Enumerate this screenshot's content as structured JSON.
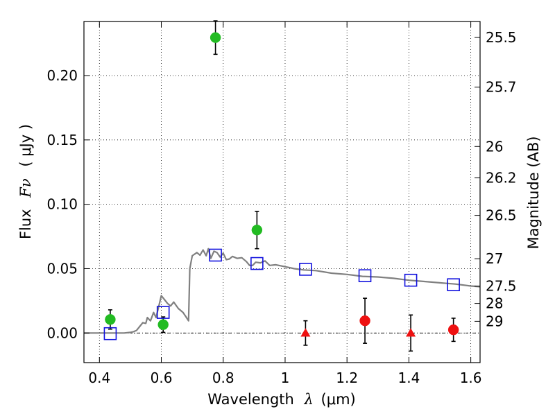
{
  "chart_data": {
    "type": "scatter",
    "xlabel_text": "Wavelength",
    "xlabel_symbol": "λ",
    "xlabel_unit": "(μm)",
    "ylabel_text": "Flux",
    "ylabel_symbol": "Fν",
    "ylabel_unit": "( μJy )",
    "y2label": "Magnitude (AB)",
    "xlim": [
      0.35,
      1.63
    ],
    "ylim": [
      -0.023,
      0.242
    ],
    "xticks": [
      0.4,
      0.6,
      0.8,
      1.0,
      1.2,
      1.4,
      1.6
    ],
    "xtick_labels": [
      "0.4",
      "0.6",
      "0.8",
      "1",
      "1.2",
      "1.4",
      "1.6"
    ],
    "yticks": [
      0.0,
      0.05,
      0.1,
      0.15,
      0.2
    ],
    "ytick_labels": [
      "0.00",
      "0.05",
      "0.10",
      "0.15",
      "0.20"
    ],
    "y2ticks": [
      {
        "label": "25.5",
        "flux": 0.2296
      },
      {
        "label": "25.7",
        "flux": 0.191
      },
      {
        "label": "26",
        "flux": 0.1449
      },
      {
        "label": "26.2",
        "flux": 0.1205
      },
      {
        "label": "26.5",
        "flux": 0.0914
      },
      {
        "label": "27",
        "flux": 0.0577
      },
      {
        "label": "27.5",
        "flux": 0.0364
      },
      {
        "label": "28",
        "flux": 0.023
      },
      {
        "label": "29",
        "flux": 0.0091
      }
    ],
    "grid": true,
    "series": [
      {
        "marker": "circle",
        "color": "#22bb22",
        "points": [
          {
            "x": 0.435,
            "y": 0.0105,
            "err": 0.0075
          },
          {
            "x": 0.606,
            "y": 0.0065,
            "err": 0.006
          },
          {
            "x": 0.775,
            "y": 0.2295,
            "err": 0.013
          },
          {
            "x": 0.909,
            "y": 0.08,
            "err": 0.0145
          }
        ]
      },
      {
        "marker": "circle",
        "color": "#ee1111",
        "points": [
          {
            "x": 1.258,
            "y": 0.0095,
            "err": 0.0175
          },
          {
            "x": 1.544,
            "y": 0.0025,
            "err": 0.009
          }
        ]
      },
      {
        "marker": "triangle",
        "color": "#ee1111",
        "points": [
          {
            "x": 1.066,
            "y": 0.0,
            "err": 0.0095
          },
          {
            "x": 1.406,
            "y": 0.0,
            "err": 0.014
          }
        ]
      },
      {
        "marker": "square",
        "color": "#1111dd",
        "points": [
          {
            "x": 0.435,
            "y": -0.0005
          },
          {
            "x": 0.606,
            "y": 0.016
          },
          {
            "x": 0.775,
            "y": 0.0605
          },
          {
            "x": 0.909,
            "y": 0.054
          },
          {
            "x": 1.066,
            "y": 0.0495
          },
          {
            "x": 1.258,
            "y": 0.0445
          },
          {
            "x": 1.406,
            "y": 0.041
          },
          {
            "x": 1.544,
            "y": 0.0375
          }
        ]
      }
    ],
    "model_curve": {
      "color": "#808080",
      "points": [
        [
          0.35,
          0.0
        ],
        [
          0.48,
          0.0
        ],
        [
          0.5,
          0.0005
        ],
        [
          0.51,
          0.001
        ],
        [
          0.52,
          0.002
        ],
        [
          0.53,
          0.005
        ],
        [
          0.54,
          0.008
        ],
        [
          0.55,
          0.0075
        ],
        [
          0.555,
          0.012
        ],
        [
          0.565,
          0.0095
        ],
        [
          0.575,
          0.016
        ],
        [
          0.583,
          0.012
        ],
        [
          0.592,
          0.021
        ],
        [
          0.6,
          0.029
        ],
        [
          0.61,
          0.026
        ],
        [
          0.62,
          0.023
        ],
        [
          0.63,
          0.021
        ],
        [
          0.64,
          0.024
        ],
        [
          0.655,
          0.019
        ],
        [
          0.67,
          0.016
        ],
        [
          0.68,
          0.0125
        ],
        [
          0.688,
          0.0095
        ],
        [
          0.692,
          0.05
        ],
        [
          0.7,
          0.06
        ],
        [
          0.715,
          0.0625
        ],
        [
          0.725,
          0.0605
        ],
        [
          0.735,
          0.0645
        ],
        [
          0.745,
          0.06
        ],
        [
          0.752,
          0.0655
        ],
        [
          0.76,
          0.058
        ],
        [
          0.77,
          0.0635
        ],
        [
          0.78,
          0.0625
        ],
        [
          0.79,
          0.059
        ],
        [
          0.8,
          0.062
        ],
        [
          0.81,
          0.057
        ],
        [
          0.82,
          0.0575
        ],
        [
          0.83,
          0.0595
        ],
        [
          0.845,
          0.058
        ],
        [
          0.86,
          0.0585
        ],
        [
          0.875,
          0.0555
        ],
        [
          0.885,
          0.0525
        ],
        [
          0.895,
          0.0525
        ],
        [
          0.905,
          0.055
        ],
        [
          0.92,
          0.0545
        ],
        [
          0.935,
          0.056
        ],
        [
          0.95,
          0.0525
        ],
        [
          0.97,
          0.053
        ],
        [
          1.0,
          0.0515
        ],
        [
          1.03,
          0.05
        ],
        [
          1.06,
          0.049
        ],
        [
          1.1,
          0.0485
        ],
        [
          1.15,
          0.0465
        ],
        [
          1.2,
          0.0455
        ],
        [
          1.25,
          0.044
        ],
        [
          1.3,
          0.0435
        ],
        [
          1.35,
          0.0425
        ],
        [
          1.4,
          0.041
        ],
        [
          1.45,
          0.04
        ],
        [
          1.5,
          0.039
        ],
        [
          1.55,
          0.038
        ],
        [
          1.6,
          0.0365
        ],
        [
          1.63,
          0.036
        ]
      ]
    }
  }
}
